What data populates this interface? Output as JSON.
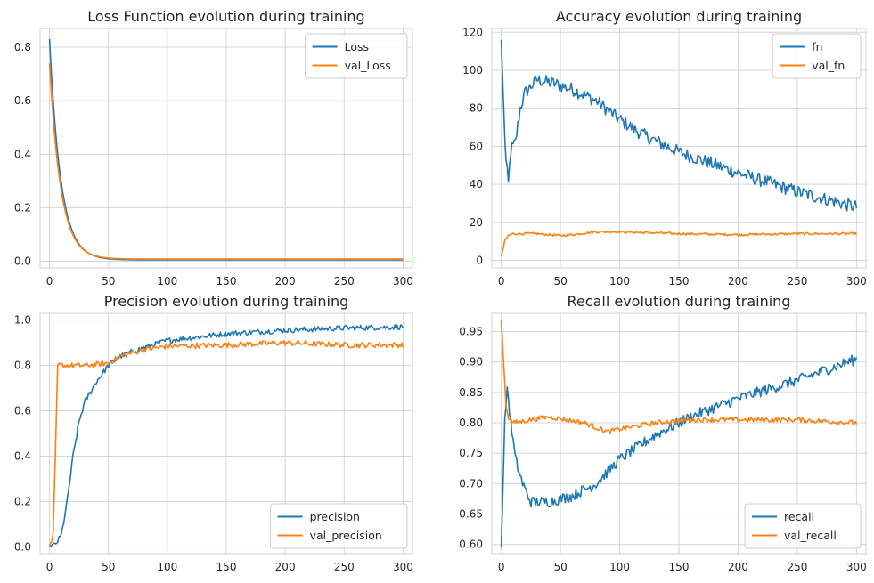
{
  "chart_data": [
    {
      "type": "line",
      "title": "Loss Function evolution during training",
      "xlim": [
        -8,
        308
      ],
      "ylim": [
        -0.025,
        0.87
      ],
      "xticks": [
        0,
        50,
        100,
        150,
        200,
        250,
        300
      ],
      "yticks": [
        0.0,
        0.2,
        0.4,
        0.6,
        0.8
      ],
      "ytick_labels": [
        "0.0",
        "0.2",
        "0.4",
        "0.6",
        "0.8"
      ],
      "legend_position": "top-right",
      "grid": true,
      "series": [
        {
          "name": "Loss",
          "color": "#1f77b4",
          "kind": "decay",
          "start": 0.83,
          "end": 0.005,
          "tau": 9.5,
          "noise": 0.0
        },
        {
          "name": "val_Loss",
          "color": "#ff7f0e",
          "kind": "decay",
          "start": 0.74,
          "end": 0.008,
          "tau": 9.5,
          "noise": 0.0
        }
      ]
    },
    {
      "type": "line",
      "title": "Accuracy evolution during training",
      "xlim": [
        -8,
        308
      ],
      "ylim": [
        -4,
        122
      ],
      "xticks": [
        0,
        50,
        100,
        150,
        200,
        250,
        300
      ],
      "yticks": [
        0,
        20,
        40,
        60,
        80,
        100,
        120
      ],
      "ytick_labels": [
        "0",
        "20",
        "40",
        "60",
        "80",
        "100",
        "120"
      ],
      "legend_position": "top-right",
      "grid": true,
      "series": [
        {
          "name": "fn",
          "color": "#1f77b4",
          "kind": "points",
          "noise": 3.5,
          "points": [
            [
              0,
              116
            ],
            [
              2,
              80
            ],
            [
              4,
              52
            ],
            [
              6,
              40
            ],
            [
              8,
              58
            ],
            [
              12,
              62
            ],
            [
              16,
              80
            ],
            [
              20,
              88
            ],
            [
              30,
              95
            ],
            [
              45,
              93
            ],
            [
              60,
              90
            ],
            [
              80,
              84
            ],
            [
              100,
              74
            ],
            [
              120,
              66
            ],
            [
              150,
              57
            ],
            [
              200,
              46
            ],
            [
              250,
              36
            ],
            [
              300,
              28
            ]
          ]
        },
        {
          "name": "val_fn",
          "color": "#ff7f0e",
          "kind": "points",
          "noise": 0.6,
          "points": [
            [
              0,
              2
            ],
            [
              3,
              10
            ],
            [
              6,
              13
            ],
            [
              10,
              14
            ],
            [
              30,
              14
            ],
            [
              50,
              13
            ],
            [
              60,
              13.5
            ],
            [
              80,
              15
            ],
            [
              100,
              15
            ],
            [
              150,
              14
            ],
            [
              200,
              13.5
            ],
            [
              250,
              14
            ],
            [
              300,
              14
            ]
          ]
        }
      ]
    },
    {
      "type": "line",
      "title": "Precision evolution during training",
      "xlim": [
        -8,
        308
      ],
      "ylim": [
        -0.03,
        1.03
      ],
      "xticks": [
        0,
        50,
        100,
        150,
        200,
        250,
        300
      ],
      "yticks": [
        0.0,
        0.2,
        0.4,
        0.6,
        0.8,
        1.0
      ],
      "ytick_labels": [
        "0.0",
        "0.2",
        "0.4",
        "0.6",
        "0.8",
        "1.0"
      ],
      "legend_position": "bottom-right",
      "grid": true,
      "series": [
        {
          "name": "precision",
          "color": "#1f77b4",
          "kind": "points",
          "noise": 0.012,
          "points": [
            [
              0,
              0.0
            ],
            [
              5,
              0.01
            ],
            [
              10,
              0.05
            ],
            [
              15,
              0.2
            ],
            [
              20,
              0.4
            ],
            [
              25,
              0.55
            ],
            [
              30,
              0.64
            ],
            [
              40,
              0.73
            ],
            [
              50,
              0.8
            ],
            [
              60,
              0.84
            ],
            [
              75,
              0.87
            ],
            [
              100,
              0.91
            ],
            [
              150,
              0.94
            ],
            [
              200,
              0.955
            ],
            [
              250,
              0.965
            ],
            [
              300,
              0.97
            ]
          ]
        },
        {
          "name": "val_precision",
          "color": "#ff7f0e",
          "kind": "points",
          "noise": 0.012,
          "points": [
            [
              0,
              0.0
            ],
            [
              3,
              0.05
            ],
            [
              5,
              0.4
            ],
            [
              7,
              0.8
            ],
            [
              30,
              0.8
            ],
            [
              50,
              0.81
            ],
            [
              60,
              0.84
            ],
            [
              80,
              0.87
            ],
            [
              100,
              0.885
            ],
            [
              150,
              0.89
            ],
            [
              200,
              0.9
            ],
            [
              250,
              0.89
            ],
            [
              300,
              0.89
            ]
          ]
        }
      ]
    },
    {
      "type": "line",
      "title": "Recall evolution during training",
      "xlim": [
        -8,
        308
      ],
      "ylim": [
        0.585,
        0.98
      ],
      "xticks": [
        0,
        50,
        100,
        150,
        200,
        250,
        300
      ],
      "yticks": [
        0.6,
        0.65,
        0.7,
        0.75,
        0.8,
        0.85,
        0.9,
        0.95
      ],
      "ytick_labels": [
        "0.60",
        "0.65",
        "0.70",
        "0.75",
        "0.80",
        "0.85",
        "0.90",
        "0.95"
      ],
      "legend_position": "bottom-right",
      "grid": true,
      "series": [
        {
          "name": "recall",
          "color": "#1f77b4",
          "kind": "points",
          "noise": 0.009,
          "points": [
            [
              0,
              0.595
            ],
            [
              3,
              0.8
            ],
            [
              5,
              0.86
            ],
            [
              8,
              0.8
            ],
            [
              12,
              0.74
            ],
            [
              18,
              0.7
            ],
            [
              25,
              0.67
            ],
            [
              40,
              0.67
            ],
            [
              60,
              0.68
            ],
            [
              80,
              0.7
            ],
            [
              100,
              0.74
            ],
            [
              130,
              0.78
            ],
            [
              160,
              0.81
            ],
            [
              200,
              0.84
            ],
            [
              250,
              0.87
            ],
            [
              300,
              0.905
            ]
          ]
        },
        {
          "name": "val_recall",
          "color": "#ff7f0e",
          "kind": "points",
          "noise": 0.004,
          "points": [
            [
              0,
              0.97
            ],
            [
              2,
              0.9
            ],
            [
              4,
              0.83
            ],
            [
              6,
              0.81
            ],
            [
              10,
              0.8
            ],
            [
              40,
              0.81
            ],
            [
              70,
              0.8
            ],
            [
              90,
              0.785
            ],
            [
              100,
              0.79
            ],
            [
              130,
              0.8
            ],
            [
              160,
              0.805
            ],
            [
              200,
              0.805
            ],
            [
              250,
              0.805
            ],
            [
              300,
              0.8
            ]
          ]
        }
      ]
    }
  ]
}
